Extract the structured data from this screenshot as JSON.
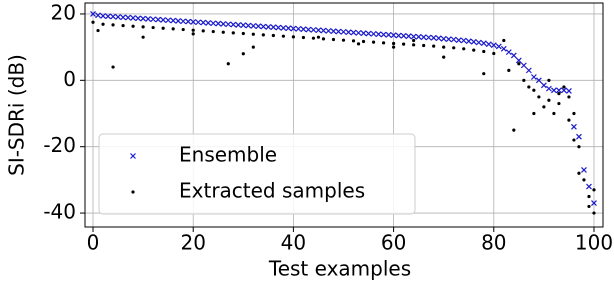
{
  "chart_data": {
    "type": "scatter",
    "xlabel": "Test examples",
    "ylabel": "SI-SDRi (dB)",
    "xlim": [
      -1.6,
      101.8
    ],
    "ylim": [
      -44.2,
      23.3
    ],
    "xticks": [
      0,
      20,
      40,
      60,
      80,
      100
    ],
    "yticks": [
      -40,
      -20,
      0,
      20
    ],
    "grid": true,
    "legend": "lower left",
    "series": [
      {
        "name": "Ensemble",
        "color": "#1a1acc",
        "marker": "x",
        "x": [
          0,
          1,
          2,
          3,
          4,
          5,
          6,
          7,
          8,
          9,
          10,
          11,
          12,
          13,
          14,
          15,
          16,
          17,
          18,
          19,
          20,
          21,
          22,
          23,
          24,
          25,
          26,
          27,
          28,
          29,
          30,
          31,
          32,
          33,
          34,
          35,
          36,
          37,
          38,
          39,
          40,
          41,
          42,
          43,
          44,
          45,
          46,
          47,
          48,
          49,
          50,
          51,
          52,
          53,
          54,
          55,
          56,
          57,
          58,
          59,
          60,
          61,
          62,
          63,
          64,
          65,
          66,
          67,
          68,
          69,
          70,
          71,
          72,
          73,
          74,
          75,
          76,
          77,
          78,
          79,
          80,
          81,
          82,
          83,
          84,
          85,
          86,
          87,
          88,
          89,
          90,
          91,
          92,
          93,
          94,
          95,
          96,
          97,
          98,
          99,
          100
        ],
        "values": [
          20.0,
          19.6,
          19.4,
          19.3,
          19.2,
          19.1,
          19.0,
          18.9,
          18.8,
          18.7,
          18.6,
          18.5,
          18.4,
          18.3,
          18.2,
          18.1,
          18.0,
          17.9,
          17.8,
          17.7,
          17.6,
          17.5,
          17.4,
          17.3,
          17.2,
          17.1,
          17.0,
          16.9,
          16.8,
          16.7,
          16.6,
          16.5,
          16.4,
          16.3,
          16.2,
          16.1,
          16.0,
          15.9,
          15.8,
          15.7,
          15.6,
          15.5,
          15.4,
          15.3,
          15.2,
          15.1,
          15.0,
          14.9,
          14.8,
          14.7,
          14.6,
          14.5,
          14.4,
          14.3,
          14.2,
          14.1,
          14.0,
          13.9,
          13.8,
          13.7,
          13.6,
          13.5,
          13.4,
          13.3,
          13.2,
          13.1,
          13.0,
          12.9,
          12.8,
          12.7,
          12.5,
          12.4,
          12.3,
          12.1,
          12.0,
          11.8,
          11.6,
          11.4,
          11.2,
          10.9,
          10.6,
          10.2,
          9.5,
          8.5,
          7.5,
          6.0,
          4.5,
          3.0,
          1.0,
          0.0,
          -1.5,
          -2.5,
          -3.0,
          -3.0,
          -3.0,
          -3.2,
          -14.0,
          -17.0,
          -27.0,
          -32.0,
          -37.0
        ]
      },
      {
        "name": "Extracted samples",
        "color": "#000000",
        "marker": "dot",
        "x": [
          0,
          2,
          4,
          6,
          8,
          10,
          12,
          14,
          16,
          18,
          20,
          22,
          24,
          26,
          28,
          30,
          32,
          34,
          36,
          38,
          40,
          42,
          44,
          46,
          48,
          50,
          52,
          54,
          56,
          58,
          60,
          62,
          64,
          66,
          68,
          70,
          72,
          74,
          76,
          78,
          80,
          4,
          27,
          30,
          32,
          53,
          64,
          70,
          78,
          84,
          85,
          87,
          88,
          89,
          90,
          91,
          92,
          93,
          94,
          95,
          96,
          96,
          97,
          97,
          98,
          99,
          99,
          100,
          100,
          82,
          83,
          86,
          88,
          91,
          93,
          95,
          1,
          10,
          20,
          45,
          60
        ],
        "values": [
          17.5,
          16.9,
          16.7,
          16.5,
          16.3,
          16.1,
          15.9,
          15.7,
          15.5,
          15.3,
          15.1,
          14.9,
          14.7,
          14.5,
          14.3,
          14.1,
          13.9,
          13.7,
          13.5,
          13.3,
          13.1,
          12.9,
          12.7,
          12.5,
          12.3,
          12.1,
          11.9,
          11.7,
          11.5,
          11.3,
          11.1,
          10.9,
          10.7,
          10.5,
          10.3,
          10.0,
          9.8,
          9.5,
          9.1,
          8.7,
          8.1,
          4,
          5,
          8,
          10,
          11,
          12,
          7,
          2,
          -15,
          5,
          -2,
          -3,
          -5,
          -8,
          -6,
          -10,
          -4,
          -2,
          -12,
          -18,
          -10,
          -20,
          -28,
          -30,
          -35,
          -38,
          -40,
          -33,
          12,
          3,
          0,
          -10,
          0,
          -7,
          -5,
          15,
          13,
          14,
          13,
          10
        ]
      }
    ]
  }
}
